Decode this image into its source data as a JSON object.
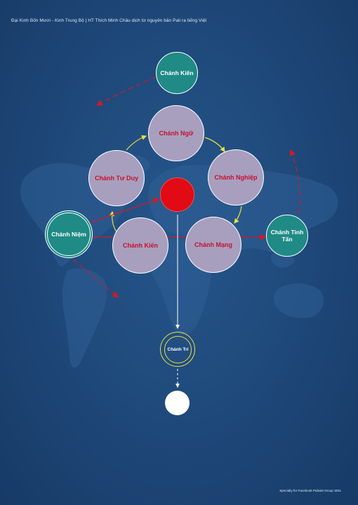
{
  "header": {
    "text": "Đại Kinh Bốn Mươi - Kinh Trung Bộ  |   HT Thích Minh Châu dịch từ nguyên bản Pali ra tiếng Việt"
  },
  "footer": {
    "text": "Specially for Facebook Paliviet Group 2011"
  },
  "nodes": {
    "chanh_kien_top": "Chánh Kiến",
    "chanh_ngu": "Chánh Ngữ",
    "chanh_tu_duy": "Chánh Tư Duy",
    "chanh_nghiep": "Chánh Nghiệp",
    "chanh_kien_center": "Chánh Kiến",
    "chanh_mang": "Chánh Mạng",
    "chanh_niem": "Chánh Niệm",
    "chanh_tinh_tan": "Chánh Tinh\nTấn",
    "chanh_tri": "Chánh Trí"
  },
  "colors": {
    "background": "#1f4a7c",
    "lavender_node": "#a89fbf",
    "teal_node": "#1f8a86",
    "label_red": "#c8102e",
    "center_red": "#e20a14",
    "yellow_arrow": "#e8e13c",
    "red_arrow": "#d01a2a"
  }
}
